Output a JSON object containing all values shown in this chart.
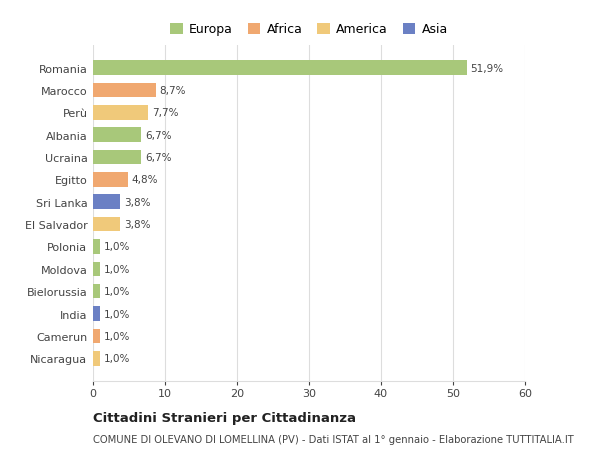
{
  "categories": [
    "Nicaragua",
    "Camerun",
    "India",
    "Bielorussia",
    "Moldova",
    "Polonia",
    "El Salvador",
    "Sri Lanka",
    "Egitto",
    "Ucraina",
    "Albania",
    "Perù",
    "Marocco",
    "Romania"
  ],
  "values": [
    1.0,
    1.0,
    1.0,
    1.0,
    1.0,
    1.0,
    3.8,
    3.8,
    4.8,
    6.7,
    6.7,
    7.7,
    8.7,
    51.9
  ],
  "labels": [
    "1,0%",
    "1,0%",
    "1,0%",
    "1,0%",
    "1,0%",
    "1,0%",
    "3,8%",
    "3,8%",
    "4,8%",
    "6,7%",
    "6,7%",
    "7,7%",
    "8,7%",
    "51,9%"
  ],
  "colors": [
    "#f0c97a",
    "#f0a870",
    "#6b80c4",
    "#a8c87a",
    "#a8c87a",
    "#a8c87a",
    "#f0c97a",
    "#6b80c4",
    "#f0a870",
    "#a8c87a",
    "#a8c87a",
    "#f0c97a",
    "#f0a870",
    "#a8c87a"
  ],
  "legend": [
    {
      "label": "Europa",
      "color": "#a8c87a"
    },
    {
      "label": "Africa",
      "color": "#f0a870"
    },
    {
      "label": "America",
      "color": "#f0c97a"
    },
    {
      "label": "Asia",
      "color": "#6b80c4"
    }
  ],
  "title": "Cittadini Stranieri per Cittadinanza",
  "subtitle": "COMUNE DI OLEVANO DI LOMELLINA (PV) - Dati ISTAT al 1° gennaio - Elaborazione TUTTITALIA.IT",
  "xlim": [
    0,
    60
  ],
  "xticks": [
    0,
    10,
    20,
    30,
    40,
    50,
    60
  ],
  "background_color": "#ffffff",
  "grid_color": "#dddddd"
}
